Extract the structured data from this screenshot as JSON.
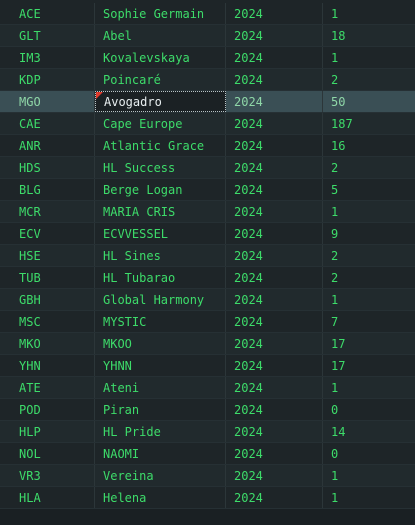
{
  "rows": [
    {
      "code": "ACE",
      "name": "Sophie Germain",
      "year": "2024",
      "count": "1"
    },
    {
      "code": "GLT",
      "name": "Abel",
      "year": "2024",
      "count": "18"
    },
    {
      "code": "IM3",
      "name": "Kovalevskaya",
      "year": "2024",
      "count": "1"
    },
    {
      "code": "KDP",
      "name": "Poincaré",
      "year": "2024",
      "count": "2"
    },
    {
      "code": "MGO",
      "name": "Avogadro",
      "year": "2024",
      "count": "50",
      "selected": true,
      "flagged": true
    },
    {
      "code": "CAE",
      "name": "Cape Europe",
      "year": "2024",
      "count": "187"
    },
    {
      "code": "ANR",
      "name": "Atlantic Grace",
      "year": "2024",
      "count": "16"
    },
    {
      "code": "HDS",
      "name": "HL Success",
      "year": "2024",
      "count": "2"
    },
    {
      "code": "BLG",
      "name": "Berge Logan",
      "year": "2024",
      "count": "5"
    },
    {
      "code": "MCR",
      "name": "MARIA CRIS",
      "year": "2024",
      "count": "1"
    },
    {
      "code": "ECV",
      "name": "ECVVESSEL",
      "year": "2024",
      "count": "9"
    },
    {
      "code": "HSE",
      "name": "HL Sines",
      "year": "2024",
      "count": "2"
    },
    {
      "code": "TUB",
      "name": "HL Tubarao",
      "year": "2024",
      "count": "2"
    },
    {
      "code": "GBH",
      "name": "Global Harmony",
      "year": "2024",
      "count": "1"
    },
    {
      "code": "MSC",
      "name": "MYSTIC",
      "year": "2024",
      "count": "7"
    },
    {
      "code": "MKO",
      "name": "MKOO",
      "year": "2024",
      "count": "17"
    },
    {
      "code": "YHN",
      "name": "YHNN",
      "year": "2024",
      "count": "17"
    },
    {
      "code": "ATE",
      "name": "Ateni",
      "year": "2024",
      "count": "1"
    },
    {
      "code": "POD",
      "name": "Piran",
      "year": "2024",
      "count": "0"
    },
    {
      "code": "HLP",
      "name": "HL Pride",
      "year": "2024",
      "count": "14"
    },
    {
      "code": "NOL",
      "name": "NAOMI",
      "year": "2024",
      "count": "0"
    },
    {
      "code": "VR3",
      "name": "Vereina",
      "year": "2024",
      "count": "1"
    },
    {
      "code": "HLA",
      "name": "Helena",
      "year": "2024",
      "count": "1"
    }
  ],
  "colors": {
    "background": "#1e2528",
    "text": "#3ddc6a",
    "selected_row": "#3a4f55",
    "flag": "#e03a2c"
  }
}
